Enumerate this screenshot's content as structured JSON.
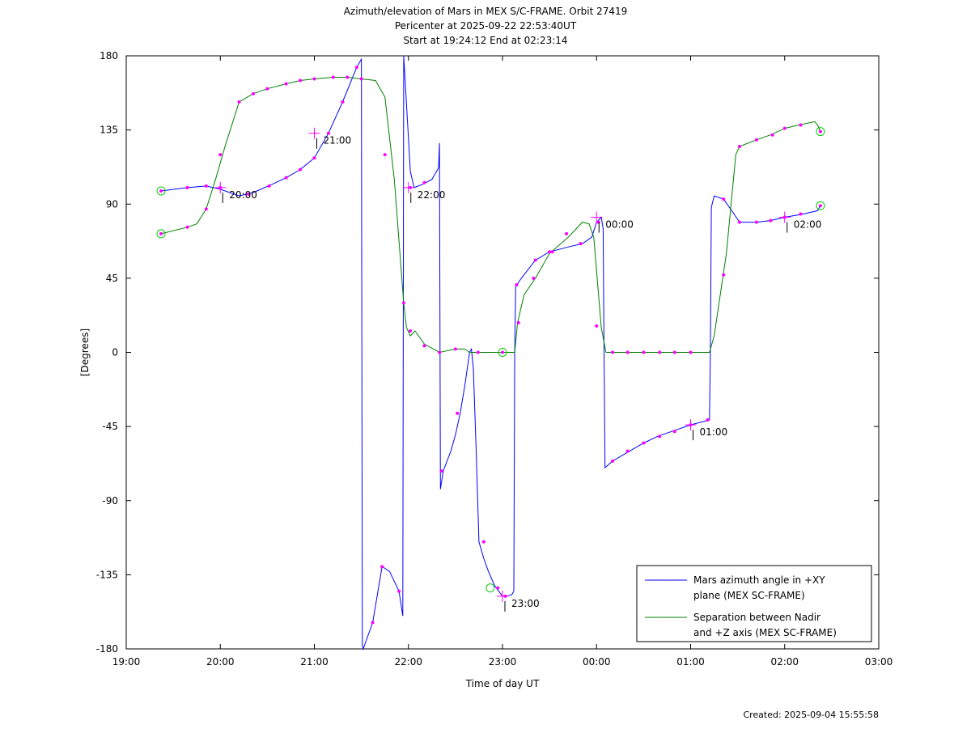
{
  "title_lines": [
    "Azimuth/elevation of Mars in MEX S/C-FRAME.  Orbit 27419",
    "Pericenter at 2025-09-22 22:53:40UT",
    "Start at 19:24:12 End at 02:23:14"
  ],
  "footer": "Created: 2025-09-04 15:55:58",
  "colors": {
    "azimuth": "#0000ff",
    "separation": "#008000",
    "markers": "#ff00ff",
    "endpoints": "#00cc00"
  },
  "chart_data": {
    "type": "line",
    "title": "Azimuth/elevation of Mars in MEX S/C-FRAME.  Orbit 27419",
    "xlabel": "Time of day UT",
    "ylabel": "[Degrees]",
    "x_unit": "hours since 19:00 UT on 2025-09-22",
    "xlim": [
      0,
      8
    ],
    "ylim": [
      -180,
      180
    ],
    "x_ticks": [
      0,
      1,
      2,
      3,
      4,
      5,
      6,
      7,
      8
    ],
    "x_tick_labels": [
      "19:00",
      "20:00",
      "21:00",
      "22:00",
      "23:00",
      "00:00",
      "01:00",
      "02:00",
      "03:00"
    ],
    "y_ticks": [
      -180,
      -135,
      -90,
      -45,
      0,
      45,
      90,
      135,
      180
    ],
    "y_tick_labels": [
      "-180",
      "-135",
      "-90",
      "-45",
      "0",
      "45",
      "90",
      "135",
      "180"
    ],
    "legend_position": "bottom-right",
    "series": [
      {
        "name": "Mars azimuth angle in +XY plane (MEX SC-FRAME)",
        "legend_lines": [
          "Mars azimuth angle in +XY",
          "plane (MEX SC-FRAME)"
        ],
        "color": "#0000ff",
        "points": [
          [
            0.37,
            98
          ],
          [
            0.65,
            100
          ],
          [
            0.85,
            101
          ],
          [
            1.0,
            99
          ],
          [
            1.2,
            95
          ],
          [
            1.35,
            97
          ],
          [
            1.55,
            102
          ],
          [
            1.7,
            106
          ],
          [
            1.85,
            111
          ],
          [
            2.0,
            118
          ],
          [
            2.15,
            133
          ],
          [
            2.3,
            152
          ],
          [
            2.45,
            173
          ],
          [
            2.5,
            178
          ],
          [
            2.51,
            -178
          ],
          [
            2.52,
            -180
          ],
          [
            2.62,
            -164
          ],
          [
            2.72,
            -130
          ],
          [
            2.8,
            -133
          ],
          [
            2.9,
            -145
          ],
          [
            2.94,
            -160
          ],
          [
            2.95,
            180
          ],
          [
            2.99,
            140
          ],
          [
            3.02,
            110
          ],
          [
            3.06,
            100
          ],
          [
            3.15,
            102
          ],
          [
            3.25,
            105
          ],
          [
            3.32,
            112
          ],
          [
            3.33,
            127
          ],
          [
            3.34,
            -83
          ],
          [
            3.37,
            -72
          ],
          [
            3.45,
            -60
          ],
          [
            3.5,
            -50
          ],
          [
            3.55,
            -37
          ],
          [
            3.6,
            -20
          ],
          [
            3.65,
            0
          ],
          [
            3.67,
            2
          ],
          [
            3.69,
            -10
          ],
          [
            3.72,
            -60
          ],
          [
            3.75,
            -115
          ],
          [
            3.8,
            -125
          ],
          [
            3.85,
            -133
          ],
          [
            3.92,
            -142
          ],
          [
            4.0,
            -148
          ],
          [
            4.05,
            -148
          ],
          [
            4.1,
            -147
          ],
          [
            4.12,
            -145
          ],
          [
            4.13,
            0
          ],
          [
            4.14,
            40
          ],
          [
            4.2,
            45
          ],
          [
            4.35,
            56
          ],
          [
            4.5,
            61
          ],
          [
            4.7,
            64
          ],
          [
            4.85,
            66
          ],
          [
            4.95,
            70
          ],
          [
            5.0,
            79
          ],
          [
            5.05,
            82
          ],
          [
            5.07,
            75
          ],
          [
            5.08,
            0
          ],
          [
            5.09,
            -70
          ],
          [
            5.17,
            -66
          ],
          [
            5.35,
            -60
          ],
          [
            5.5,
            -55
          ],
          [
            5.65,
            -51
          ],
          [
            5.8,
            -48
          ],
          [
            6.0,
            -44
          ],
          [
            6.2,
            -41
          ],
          [
            6.21,
            0
          ],
          [
            6.22,
            88
          ],
          [
            6.25,
            95
          ],
          [
            6.35,
            93
          ],
          [
            6.45,
            85
          ],
          [
            6.52,
            79
          ],
          [
            6.7,
            79
          ],
          [
            6.85,
            80
          ],
          [
            7.0,
            82
          ],
          [
            7.2,
            84
          ],
          [
            7.35,
            86
          ],
          [
            7.38,
            89
          ]
        ],
        "markers": [
          [
            0.37,
            98
          ],
          [
            0.65,
            100
          ],
          [
            0.85,
            101
          ],
          [
            1.0,
            100
          ],
          [
            1.3,
            96
          ],
          [
            1.52,
            101
          ],
          [
            1.7,
            106
          ],
          [
            1.85,
            111
          ],
          [
            2.0,
            118
          ],
          [
            2.15,
            133
          ],
          [
            2.3,
            152
          ],
          [
            2.45,
            173
          ],
          [
            2.62,
            -164
          ],
          [
            2.72,
            -130
          ],
          [
            2.9,
            -145
          ],
          [
            3.02,
            100
          ],
          [
            3.17,
            103
          ],
          [
            3.35,
            -72
          ],
          [
            3.52,
            -37
          ],
          [
            3.8,
            -115
          ],
          [
            3.95,
            -143
          ],
          [
            4.03,
            -148
          ],
          [
            4.15,
            41
          ],
          [
            4.35,
            56
          ],
          [
            4.53,
            61
          ],
          [
            4.83,
            66
          ],
          [
            5.02,
            79
          ],
          [
            5.17,
            -66
          ],
          [
            5.33,
            -60
          ],
          [
            5.5,
            -55
          ],
          [
            5.67,
            -51
          ],
          [
            5.83,
            -48
          ],
          [
            6.0,
            -44
          ],
          [
            6.18,
            -41
          ],
          [
            6.35,
            93
          ],
          [
            6.52,
            79
          ],
          [
            6.7,
            79
          ],
          [
            6.85,
            80
          ],
          [
            7.0,
            82
          ],
          [
            7.17,
            84
          ],
          [
            7.38,
            89
          ]
        ]
      },
      {
        "name": "Separation between Nadir and +Z axis (MEX SC-FRAME)",
        "legend_lines": [
          "Separation between Nadir",
          "and +Z axis (MEX SC-FRAME)"
        ],
        "color": "#008000",
        "points": [
          [
            0.37,
            72
          ],
          [
            0.65,
            76
          ],
          [
            0.75,
            78
          ],
          [
            0.85,
            87
          ],
          [
            0.95,
            105
          ],
          [
            1.05,
            125
          ],
          [
            1.2,
            152
          ],
          [
            1.35,
            157
          ],
          [
            1.5,
            160
          ],
          [
            1.7,
            163
          ],
          [
            1.85,
            165
          ],
          [
            2.0,
            166
          ],
          [
            2.2,
            167
          ],
          [
            2.35,
            167
          ],
          [
            2.5,
            166
          ],
          [
            2.65,
            165
          ],
          [
            2.75,
            155
          ],
          [
            2.85,
            105
          ],
          [
            2.95,
            30
          ],
          [
            2.98,
            15
          ],
          [
            3.02,
            10
          ],
          [
            3.07,
            13
          ],
          [
            3.17,
            5
          ],
          [
            3.33,
            0
          ],
          [
            3.5,
            2
          ],
          [
            3.6,
            2
          ],
          [
            3.65,
            0
          ],
          [
            4.0,
            0
          ],
          [
            4.13,
            0
          ],
          [
            4.16,
            18
          ],
          [
            4.23,
            35
          ],
          [
            4.35,
            45
          ],
          [
            4.5,
            60
          ],
          [
            4.7,
            70
          ],
          [
            4.85,
            79
          ],
          [
            4.92,
            78
          ],
          [
            4.97,
            70
          ],
          [
            5.05,
            15
          ],
          [
            5.1,
            0
          ],
          [
            5.4,
            0
          ],
          [
            6.0,
            0
          ],
          [
            6.2,
            0
          ],
          [
            6.25,
            10
          ],
          [
            6.38,
            60
          ],
          [
            6.48,
            120
          ],
          [
            6.52,
            125
          ],
          [
            6.7,
            129
          ],
          [
            6.85,
            132
          ],
          [
            7.0,
            136
          ],
          [
            7.15,
            138
          ],
          [
            7.32,
            140
          ],
          [
            7.35,
            138
          ],
          [
            7.38,
            134
          ]
        ],
        "markers": [
          [
            0.37,
            72
          ],
          [
            0.65,
            76
          ],
          [
            0.85,
            87
          ],
          [
            1.0,
            120
          ],
          [
            1.2,
            152
          ],
          [
            1.35,
            157
          ],
          [
            1.5,
            160
          ],
          [
            1.7,
            163
          ],
          [
            1.85,
            165
          ],
          [
            2.0,
            166
          ],
          [
            2.2,
            167
          ],
          [
            2.35,
            167
          ],
          [
            2.5,
            166
          ],
          [
            2.75,
            120
          ],
          [
            2.95,
            30
          ],
          [
            3.02,
            13
          ],
          [
            3.17,
            4
          ],
          [
            3.33,
            0
          ],
          [
            3.5,
            2
          ],
          [
            3.74,
            0
          ],
          [
            4.0,
            0
          ],
          [
            4.17,
            18
          ],
          [
            4.33,
            45
          ],
          [
            4.5,
            61
          ],
          [
            4.68,
            72
          ],
          [
            5.0,
            16
          ],
          [
            5.17,
            0
          ],
          [
            5.33,
            0
          ],
          [
            5.5,
            0
          ],
          [
            5.67,
            0
          ],
          [
            5.83,
            0
          ],
          [
            6.0,
            0
          ],
          [
            6.35,
            47
          ],
          [
            6.52,
            125
          ],
          [
            6.7,
            129
          ],
          [
            6.87,
            132
          ],
          [
            7.0,
            136
          ],
          [
            7.17,
            138
          ],
          [
            7.38,
            134
          ]
        ]
      }
    ],
    "endpoint_circles": [
      [
        0.37,
        98
      ],
      [
        0.37,
        72
      ],
      [
        3.87,
        -143
      ],
      [
        4.0,
        0
      ],
      [
        7.38,
        134
      ],
      [
        7.38,
        89
      ]
    ],
    "annotations": [
      {
        "label": "20:00",
        "x": 1.0,
        "y": 100
      },
      {
        "label": "21:00",
        "x": 2.0,
        "y": 133
      },
      {
        "label": "22:00",
        "x": 3.0,
        "y": 100
      },
      {
        "label": "23:00",
        "x": 4.0,
        "y": -148
      },
      {
        "label": "00:00",
        "x": 5.0,
        "y": 82
      },
      {
        "label": "01:00",
        "x": 6.0,
        "y": -44
      },
      {
        "label": "02:00",
        "x": 7.0,
        "y": 82
      }
    ]
  }
}
